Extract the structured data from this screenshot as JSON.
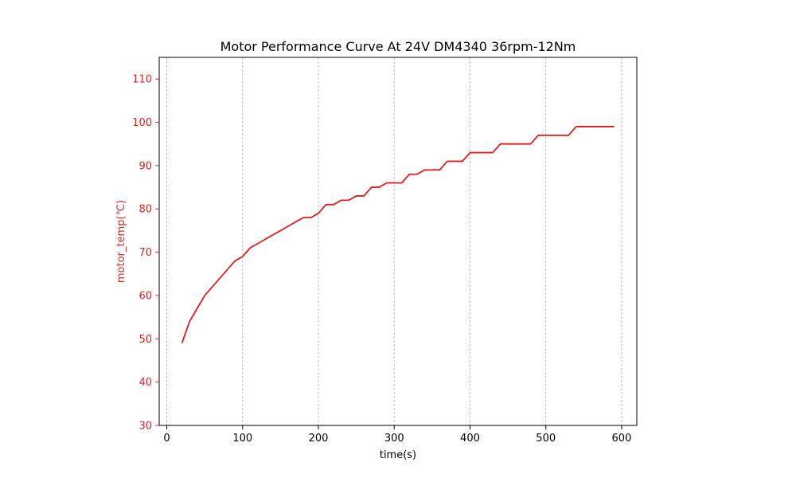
{
  "chart_data": {
    "type": "line",
    "title": "Motor Performance Curve At 24V DM4340 36rpm-12Nm",
    "xlabel": "time(s)",
    "ylabel": "motor_temp(℃)",
    "xlim": [
      -10,
      620
    ],
    "ylim": [
      30,
      115
    ],
    "xticks": [
      0,
      100,
      200,
      300,
      400,
      500,
      600
    ],
    "yticks": [
      30,
      40,
      50,
      60,
      70,
      80,
      90,
      100,
      110
    ],
    "grid": "vertical-dashed",
    "legend": "none",
    "colors": {
      "series": "#e41a1c",
      "axis_text": "#d62728",
      "grid": "#b0b0b0"
    },
    "series": [
      {
        "x": [
          20,
          30,
          40,
          50,
          60,
          70,
          80,
          90,
          100,
          110,
          120,
          130,
          140,
          150,
          160,
          170,
          180,
          190,
          200,
          210,
          220,
          230,
          240,
          250,
          260,
          270,
          280,
          290,
          300,
          310,
          320,
          330,
          340,
          350,
          360,
          370,
          380,
          390,
          400,
          410,
          420,
          430,
          440,
          450,
          460,
          470,
          480,
          490,
          500,
          510,
          520,
          530,
          540,
          550,
          560,
          570,
          580,
          590
        ],
        "y": [
          49,
          54,
          57,
          60,
          62,
          64,
          66,
          68,
          69,
          71,
          72,
          73,
          74,
          75,
          76,
          77,
          78,
          78,
          79,
          81,
          81,
          82,
          82,
          83,
          83,
          85,
          85,
          86,
          86,
          86,
          88,
          88,
          89,
          89,
          89,
          91,
          91,
          91,
          93,
          93,
          93,
          93,
          95,
          95,
          95,
          95,
          95,
          97,
          97,
          97,
          97,
          97,
          99,
          99,
          99,
          99,
          99,
          99
        ]
      }
    ]
  }
}
